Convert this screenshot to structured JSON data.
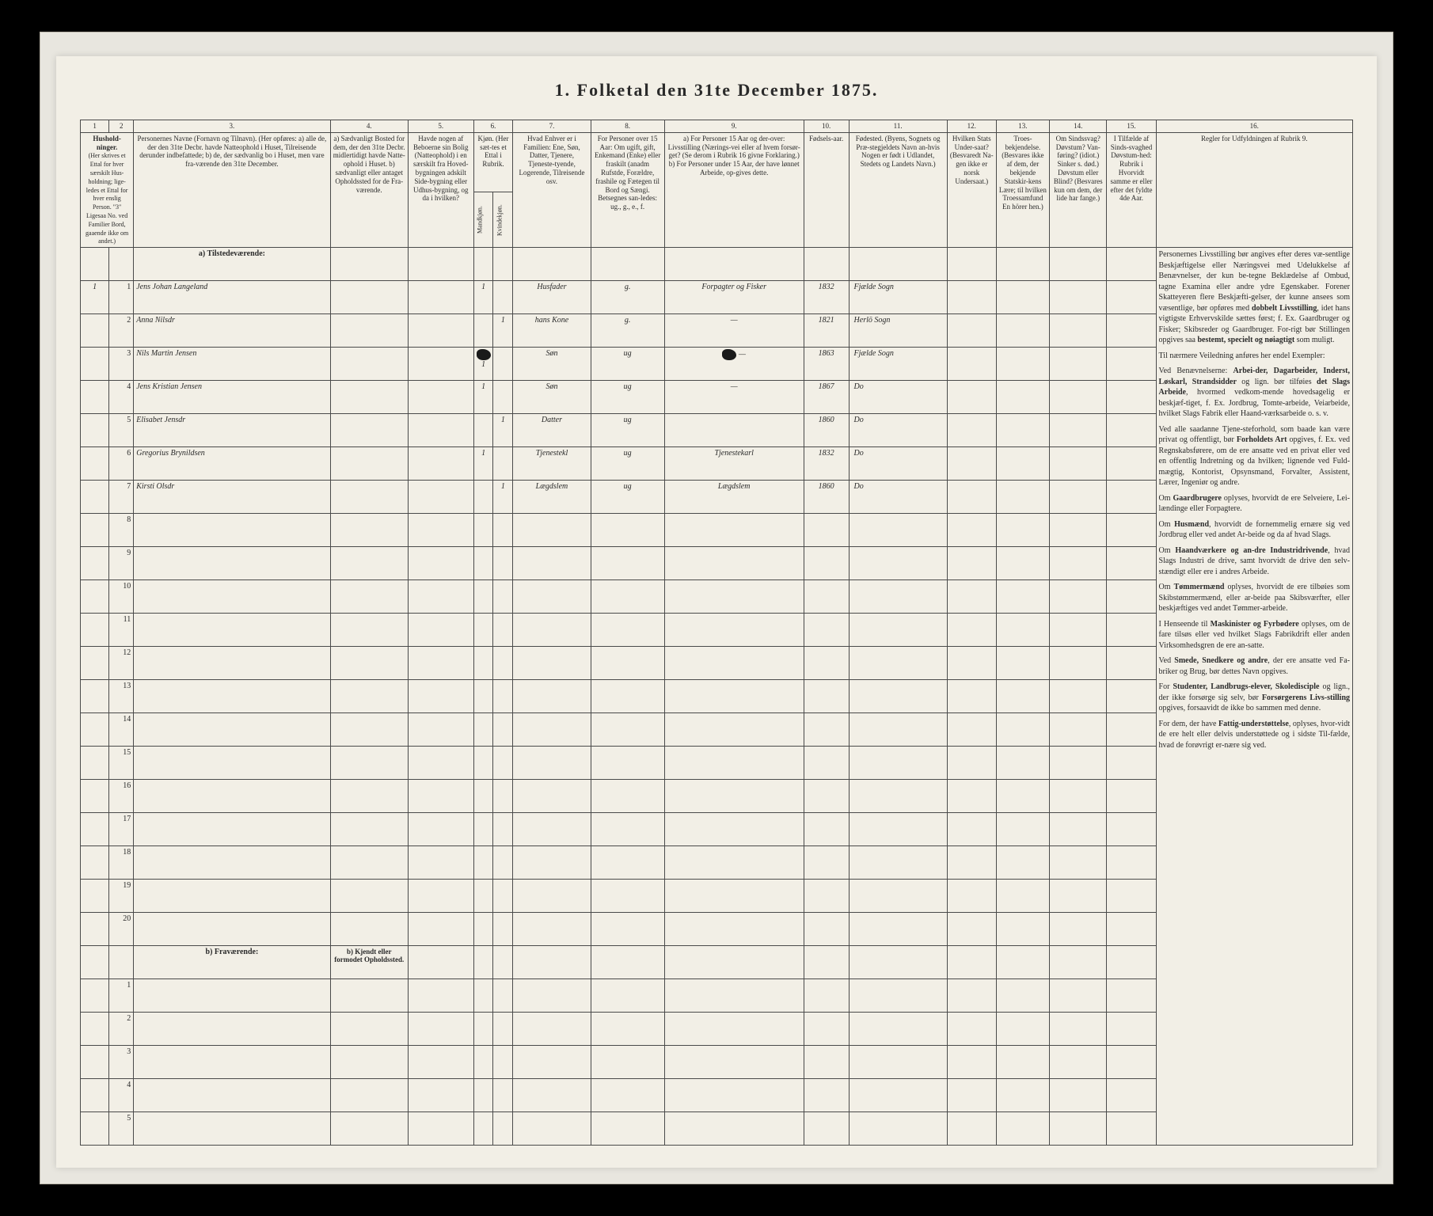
{
  "title": "1.  Folketal  den 31te December 1875.",
  "columns": {
    "nums": [
      "1",
      "2",
      "3.",
      "4.",
      "5.",
      "6.",
      "7.",
      "8.",
      "9.",
      "10.",
      "11.",
      "12.",
      "13.",
      "14.",
      "15.",
      "16."
    ],
    "h1": "Hushold-\nninger.",
    "h1sub": "(Her skrives et Ettal for hver særskilt Hus-holdning; lige-ledes et Ettal for hver enslig Person. \"3\" Ligesaa No. ved Familier Bord, gaaende ikke om andet.)",
    "h3": "Personernes Navne (Fornavn og Tilnavn).\n(Her opføres:\na) alle de, der den 31te Decbr. havde Natteophold i Huset, Tilreisende derunder indbefattede;\nb) de, der sædvanlig bo i Huset, men vare fra-værende den 31te December.",
    "h4": "a) Sædvanligt Bosted for dem, der den 31te Decbr. midlertidigt havde Natte-ophold i Huset.\nb) sædvanligt eller antaget Opholdssted for de Fra-værende.",
    "h5": "Havde nogen af Beboerne sin Bolig (Natteophold) i en særskilt fra Hoved-bygningen adskilt Side-bygning eller Udhus-bygning, og da i hvilken?",
    "h6": "Kjøn.\n(Her sæt-tes et Ettal i Rubrik.",
    "h6a": "Mandkjøn.",
    "h6b": "Kvindekjøn.",
    "h7": "Hvad Enhver er i Familien: Ene, Søn, Datter, Tjenere, Tjeneste-tyende, Logerende, Tilreisende osv.",
    "h8": "For Personer over 15 Aar: Om ugift, gift, Enkemand (Enke) eller fraskilt (anadm Rufstde, Forældre, frashile og Fætegen til Bord og Sængi. Betsegnes san-ledes: ug., g., e., f.",
    "h9": "a) For Personer 15 Aar og der-over: Livsstilling (Nærings-vei eller af hvem forsør-get? (Se derom i Rubrik 16 givne Forklaring.)\nb) For Personer under 15 Aar, der have lønnet Arbeide, op-gives dette.",
    "h10": "Fødsels-aar.",
    "h11": "Fødested.\n(Byens, Sognets og Præ-stegjeldets Navn an-hvis Nogen er født i Udlandet, Stedets og Landets Navn.)",
    "h12": "Hvilken Stats Under-saat?\n(Besvaredt Na-gen ikke er norsk Undersaat.)",
    "h13": "Troes-bekjendelse.\n(Besvares ikke af dem, der bekjende Statskir-kens Lære; til hvilken Troessamfund En hörer hen.)",
    "h14": "Om Sindssvag? Døvstum? Van-føring? (idiot.) Sinker s. død.)\nDøvstum eller Blind?\n(Besvares kun om dem, der lide har fange.)",
    "h15": "I Tilfælde af Sinds-svaghed Døvstum-hed: Rubrik i Hvorvidt samme er eller efter det fyldte 4de Aar.",
    "h16": "Regler for Udfyldningen\naf\nRubrik 9."
  },
  "section_a": "a) Tilstedeværende:",
  "section_b": "b) Fraværende:",
  "section_b_side": "b) Kjendt eller formodet Opholdssted.",
  "rows": [
    {
      "n": "1",
      "hh": "1",
      "name": "Jens Johan Langeland",
      "c4": "",
      "c5": "",
      "m": "1",
      "k": "",
      "rel": "Husfader",
      "civ": "g.",
      "occ": "Forpagter og Fisker",
      "year": "1832",
      "place": "Fjælde Sogn"
    },
    {
      "n": "2",
      "hh": "",
      "name": "Anna Nilsdr",
      "c4": "",
      "c5": "",
      "m": "",
      "k": "1",
      "rel": "hans Kone",
      "civ": "g.",
      "occ": "—",
      "year": "1821",
      "place": "Herlö Sogn"
    },
    {
      "n": "3",
      "hh": "",
      "name": "Nils Martin Jensen",
      "c4": "",
      "c5": "",
      "m": "1",
      "k": "",
      "smear": true,
      "rel": "Søn",
      "civ": "ug",
      "occ": "—",
      "occsmear": true,
      "year": "1863",
      "place": "Fjælde Sogn"
    },
    {
      "n": "4",
      "hh": "",
      "name": "Jens Kristian Jensen",
      "c4": "",
      "c5": "",
      "m": "1",
      "k": "",
      "rel": "Søn",
      "civ": "ug",
      "occ": "—",
      "year": "1867",
      "place": "Do"
    },
    {
      "n": "5",
      "hh": "",
      "name": "Elisabet Jensdr",
      "c4": "",
      "c5": "",
      "m": "",
      "k": "1",
      "rel": "Datter",
      "civ": "ug",
      "occ": "",
      "year": "1860",
      "place": "Do"
    },
    {
      "n": "6",
      "hh": "",
      "name": "Gregorius Brynildsen",
      "c4": "",
      "c5": "",
      "m": "1",
      "k": "",
      "rel": "Tjenestekl",
      "civ": "ug",
      "occ": "Tjenestekarl",
      "year": "1832",
      "place": "Do"
    },
    {
      "n": "7",
      "hh": "",
      "name": "Kirsti Olsdr",
      "c4": "",
      "c5": "",
      "m": "",
      "k": "1",
      "rel": "Lægdslem",
      "civ": "ug",
      "occ": "Lægdslem",
      "year": "1860",
      "place": "Do"
    }
  ],
  "blank_a": [
    "8",
    "9",
    "10",
    "11",
    "12",
    "13",
    "14",
    "15",
    "16",
    "17",
    "18",
    "19",
    "20"
  ],
  "blank_b": [
    "1",
    "2",
    "3",
    "4",
    "5"
  ],
  "rules": [
    "Personernes Livsstilling bør angives efter deres væ-sentlige Beskjæftigelse eller Næringsvei med Udelukkelse af Benævnelser, der kun be-tegne Beklædelse af Ombud, tagne Examina eller andre ydre Egenskaber. Forener Skatteyeren flere Beskjæfti-gelser, der kunne ansees som væsentlige, bør opføres med <b>dobbelt Livsstilling</b>, idet hans vigtigste Erhvervskilde sættes først; f. Ex. Gaardbruger og Fisker; Skibsreder og Gaardbruger. For-rigt bør Stillingen opgives saa <b>bestemt, specielt og nøiagtigt</b> som muligt.",
    "Til nærmere Veiledning anføres her endel Exempler:",
    "Ved Benævnelserne: <b>Arbei-der, Dagarbeider, Inderst, Løskarl, Strandsidder</b> og lign. bør tilføies <b>det Slags Arbeide</b>, hvormed vedkom-mende hovedsagelig er beskjæf-tiget, f. Ex. Jordbrug, Tomte-arbeide, Veiarbeide, hvilket Slags Fabrik eller Haand-værksarbeide o. s. v.",
    "Ved alle saadanne Tjene-steforhold, som baade kan være privat og offentligt, bør <b>Forholdets Art</b> opgives, f. Ex. ved Regnskabsførere, om de ere ansatte ved en privat eller ved en offentlig Indretning og da hvilken; lignende ved Fuld-mægtig, Kontorist, Opsynsmand, Forvalter, Assistent, Lærer, Ingeniør og andre.",
    "Om <b>Gaardbrugere</b> oplyses, hvorvidt de ere Selveiere, Lei-lændinge eller Forpagtere.",
    "Om <b>Husmænd</b>, hvorvidt de fornemmelig ernære sig ved Jordbrug eller ved andet Ar-beide og da af hvad Slags.",
    "Om <b>Haandværkere og an-dre Industridrivende</b>, hvad Slags Industri de drive, samt hvorvidt de drive den selv-stændigt eller ere i andres Arbeide.",
    "Om <b>Tømmermænd</b> oplyses, hvorvidt de ere tilbøies som Skibstømmermænd, eller ar-beide paa Skibsværfter, eller beskjæftiges ved andet Tømmer-arbeide.",
    "I Henseende til <b>Maskinister og Fyrbødere</b> oplyses, om de fare tilsøs eller ved hvilket Slags Fabrikdrift eller anden Virksomhedsgren de ere an-satte.",
    "Ved <b>Smede, Snedkere og andre</b>, der ere ansatte ved Fa-briker og Brug, bør dettes Navn opgives.",
    "For <b>Studenter, Landbrugs-elever, Skoledisciple</b> og lign., der ikke forsørge sig selv, bør <b>Forsørgerens Livs-stilling</b> opgives, forsaavidt de ikke bo sammen med denne.",
    "For dem, der have <b>Fattig-understøttelse</b>, oplyses, hvor-vidt de ere helt eller delvis understøttede og i sidste Til-fælde, hvad de forøvrigt er-nære sig ved."
  ]
}
